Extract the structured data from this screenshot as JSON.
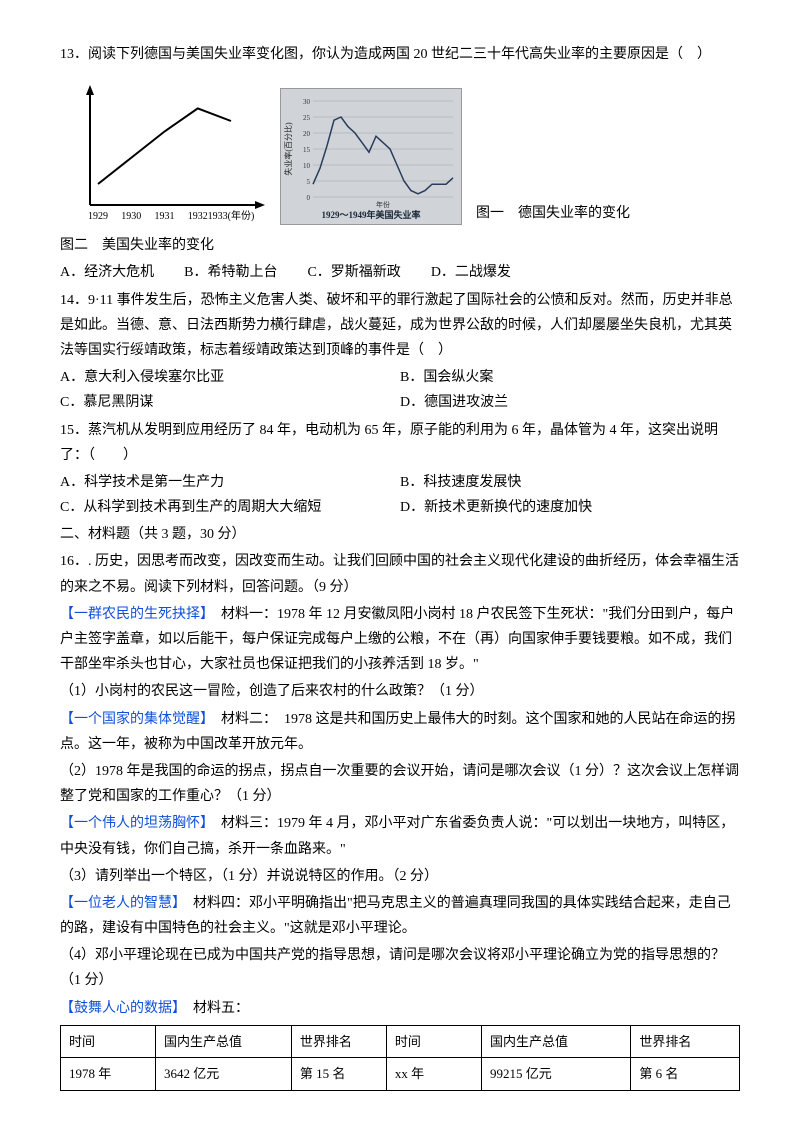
{
  "q13": {
    "text": "13．阅读下列德国与美国失业率变化图，你认为造成两国 20 世纪二三十年代高失业率的主要原因是（　）",
    "chart1": {
      "type": "line",
      "xticks": [
        "1929",
        "1930",
        "1931",
        "1932",
        "1933(年份)"
      ],
      "values": [
        0.2,
        0.45,
        0.7,
        0.92,
        0.8
      ],
      "axis_color": "#000",
      "line_color": "#000",
      "line_width": 2
    },
    "chart2": {
      "type": "area-line",
      "title_bottom": "1929～1949年美国失业率",
      "ylabel_cn": "失业率(百分比)",
      "xlabel_cn": "年份",
      "values": [
        4,
        9,
        16,
        24,
        25,
        22,
        20,
        17,
        14,
        19,
        17,
        15,
        10,
        5,
        2,
        1,
        2,
        4,
        4,
        4,
        6
      ],
      "ymax": 30,
      "line_color": "#2a3c5c",
      "grid_color": "#9aa2a8",
      "bg_color": "#d0d4d8",
      "line_width": 1.5
    },
    "caption1": "图一　德国失业率的变化",
    "caption2": "图二　美国失业率的变化",
    "optA": "A．经济大危机",
    "optB": "B．希特勒上台",
    "optC": "C．罗斯福新政",
    "optD": "D．二战爆发"
  },
  "q14": {
    "text": "14．9·11 事件发生后，恐怖主义危害人类、破坏和平的罪行激起了国际社会的公愤和反对。然而，历史并非总是如此。当德、意、日法西斯势力横行肆虐，战火蔓延，成为世界公敌的时候，人们却屡屡坐失良机，尤其英法等国实行绥靖政策，标志着绥靖政策达到顶峰的事件是（　）",
    "optA": "A．意大利入侵埃塞尔比亚",
    "optB": "B．国会纵火案",
    "optC": "C．慕尼黑阴谋",
    "optD": "D．德国进攻波兰"
  },
  "q15": {
    "text": "15．蒸汽机从发明到应用经历了 84 年，电动机为 65 年，原子能的利用为 6 年，晶体管为 4 年，这突出说明了：（　　）",
    "optA": "A．科学技术是第一生产力",
    "optB": "B．科技速度发展快",
    "optC": "C．从科学到技术再到生产的周期大大缩短",
    "optD": "D．新技术更新换代的速度加快"
  },
  "section2": "二、材料题（共 3 题，30 分）",
  "q16": {
    "intro": "16．. 历史，因思考而改变，因改变而生动。让我们回顾中国的社会主义现代化建设的曲折经历，体会幸福生活的来之不易。阅读下列材料，回答问题。（9 分）",
    "h1": "【一群农民的生死抉择】",
    "m1": "　材料一：1978 年 12 月安徽凤阳小岗村 18 户农民签下生死状：\"我们分田到户，每户户主签字盖章，如以后能干，每户保证完成每户上缴的公粮，不在（再）向国家伸手要钱要粮。如不成，我们干部坐牢杀头也甘心，大家社员也保证把我们的小孩养活到 18 岁。\"",
    "q1": "（1）小岗村的农民这一冒险，创造了后来农村的什么政策？（1 分）",
    "h2": "【一个国家的集体觉醒】",
    "m2": "　材料二：　1978 这是共和国历史上最伟大的时刻。这个国家和她的人民站在命运的拐点。这一年，被称为中国改革开放元年。",
    "q2": "（2）1978 年是我国的命运的拐点，拐点自一次重要的会议开始，请问是哪次会议（1 分）？这次会议上怎样调整了党和国家的工作重心？（1 分）",
    "h3": "【一个伟人的坦荡胸怀】",
    "m3": "　材料三：1979 年 4 月，邓小平对广东省委负责人说：\"可以划出一块地方，叫特区，中央没有钱，你们自己搞，杀开一条血路来。\"",
    "q3": "（3）请列举出一个特区，（1 分）并说说特区的作用。（2 分）",
    "h4": "【一位老人的智慧】",
    "m4": "　材料四：邓小平明确指出\"把马克思主义的普遍真理同我国的具体实践结合起来，走自己的路，建设有中国特色的社会主义。\"这就是邓小平理论。",
    "q4": "（4）邓小平理论现在已成为中国共产党的指导思想，请问是哪次会议将邓小平理论确立为党的指导思想的？（1 分）",
    "h5": "【鼓舞人心的数据】",
    "m5": "　材料五："
  },
  "table": {
    "headers": [
      "时间",
      "国内生产总值",
      "世界排名",
      "时间",
      "国内生产总值",
      "世界排名"
    ],
    "row": [
      "1978 年",
      "3642 亿元",
      "第 15 名",
      "xx 年",
      "99215 亿元",
      "第 6 名"
    ],
    "col_widths": [
      "14%",
      "20%",
      "14%",
      "14%",
      "22%",
      "16%"
    ]
  }
}
